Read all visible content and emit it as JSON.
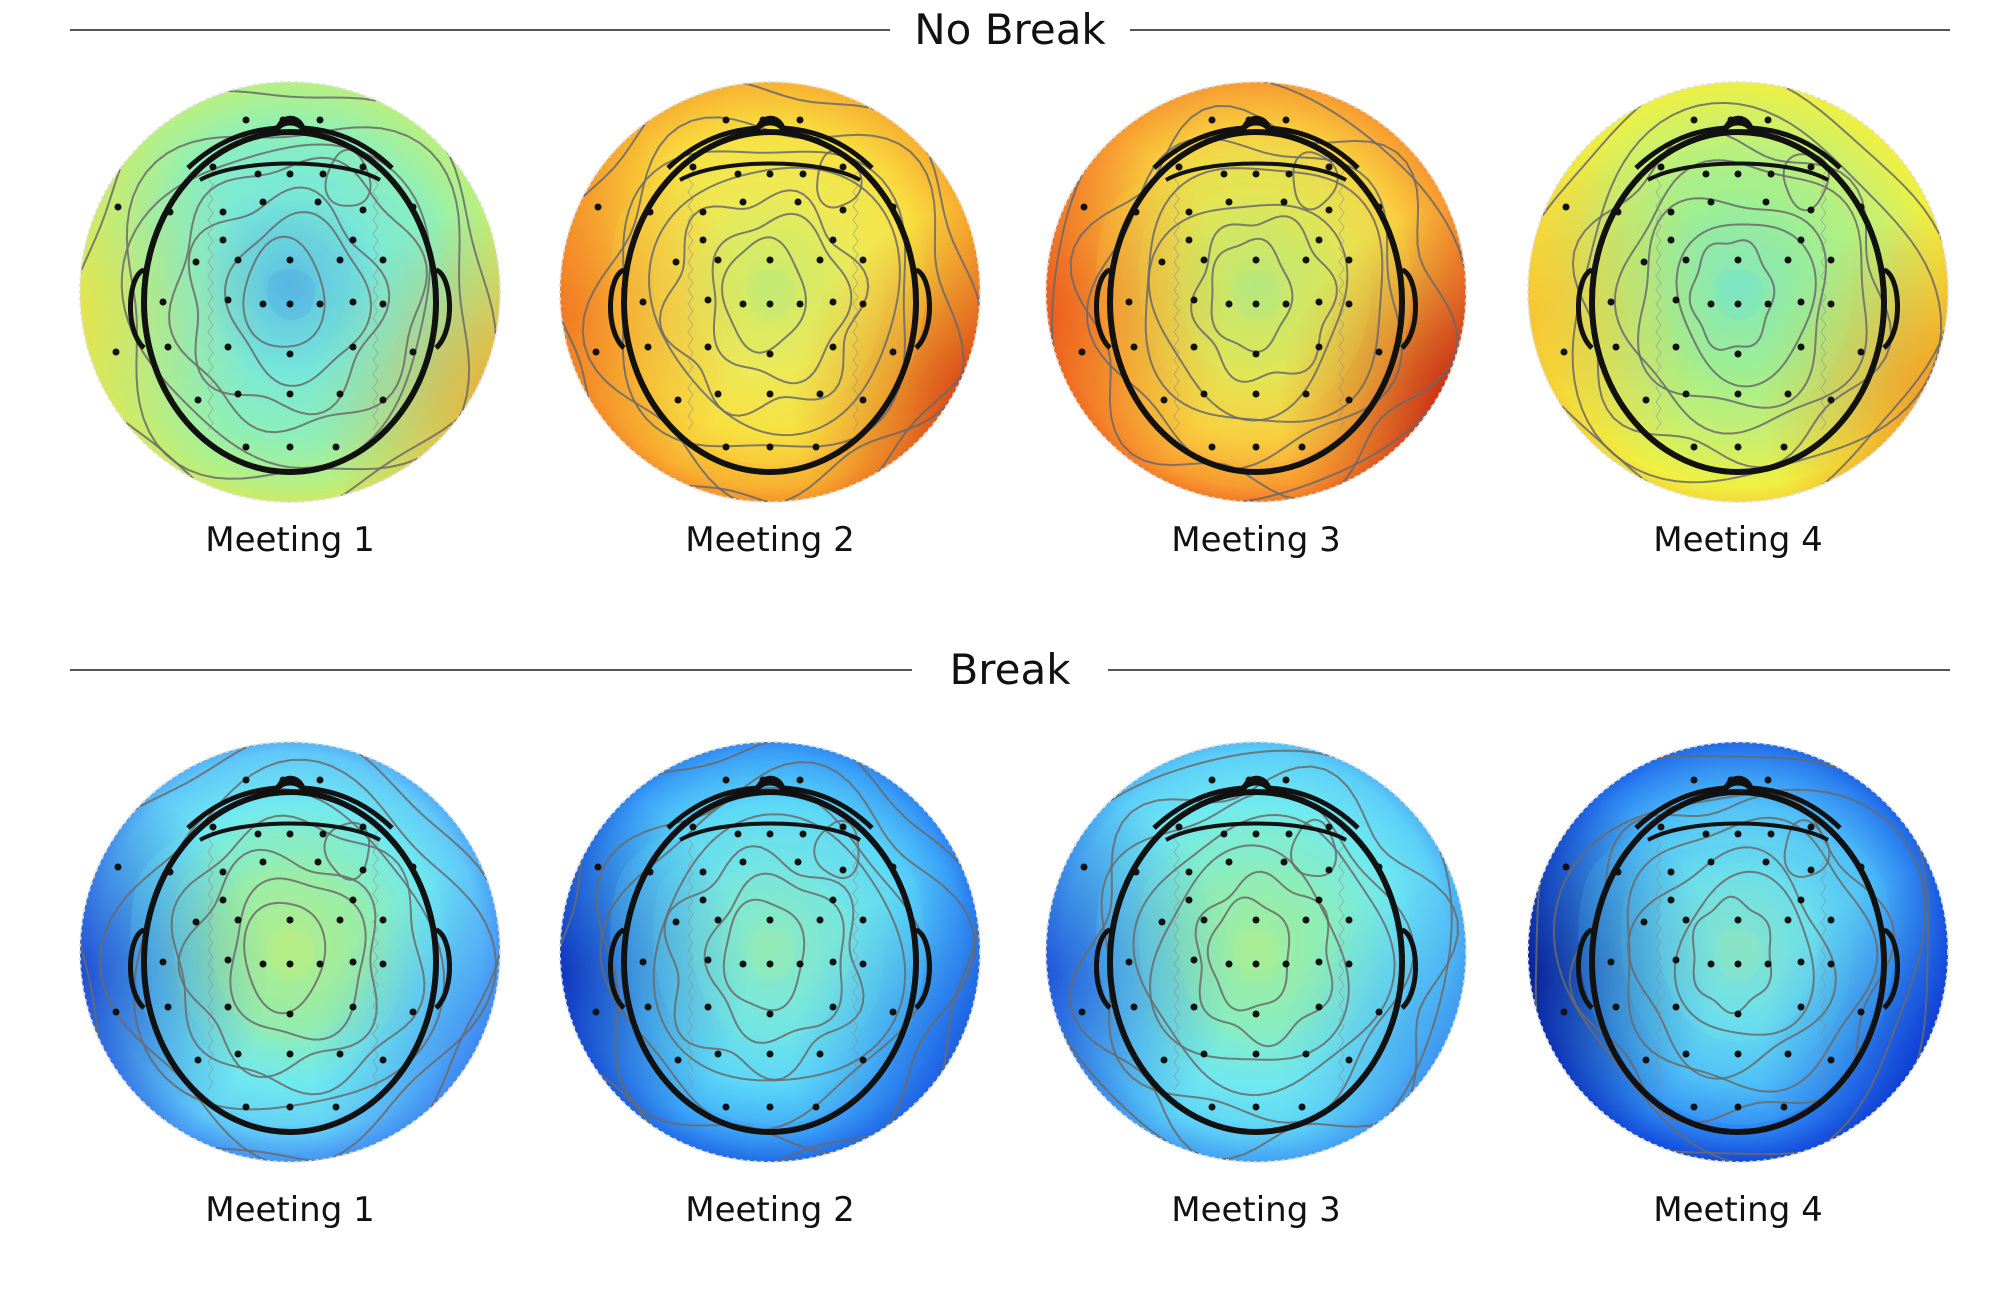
{
  "sections": [
    {
      "title": "No Break",
      "meetings": [
        {
          "label": "Meeting 1",
          "palette": [
            "#3b8ff0",
            "#6ee6e8",
            "#8ef0b8",
            "#b8f080",
            "#f0e040",
            "#f0a030"
          ]
        },
        {
          "label": "Meeting 2",
          "palette": [
            "#a0f090",
            "#e8f060",
            "#f8e040",
            "#f8b030",
            "#f06a20",
            "#d02a10"
          ]
        },
        {
          "label": "Meeting 3",
          "palette": [
            "#90f0a0",
            "#d8f060",
            "#f8d040",
            "#f89a30",
            "#e84a18",
            "#b81010"
          ]
        },
        {
          "label": "Meeting 4",
          "palette": [
            "#60e0f0",
            "#90f0a0",
            "#c8f070",
            "#f0f040",
            "#f8b830",
            "#f08020"
          ]
        }
      ]
    },
    {
      "title": "Break",
      "meetings": [
        {
          "label": "Meeting 1",
          "palette": [
            "#1030c8",
            "#3a80f0",
            "#60c8f8",
            "#70eaf0",
            "#a8f090",
            "#d8f060"
          ]
        },
        {
          "label": "Meeting 2",
          "palette": [
            "#0820b0",
            "#1a58e0",
            "#3aa0f8",
            "#5cd8f8",
            "#80ecd8",
            "#b0f090"
          ]
        },
        {
          "label": "Meeting 3",
          "palette": [
            "#1238d0",
            "#3a90f0",
            "#5ccff8",
            "#70eaf0",
            "#98f0a8",
            "#c8f070"
          ]
        },
        {
          "label": "Meeting 4",
          "palette": [
            "#041080",
            "#0c36d0",
            "#2a7ef0",
            "#50c0f8",
            "#78eae8",
            "#a8f0a0"
          ]
        }
      ]
    }
  ],
  "colors": {
    "head_outline": "#111111",
    "contour": "#6a6a6a",
    "electrode": "#111111",
    "rule": "#555555"
  }
}
